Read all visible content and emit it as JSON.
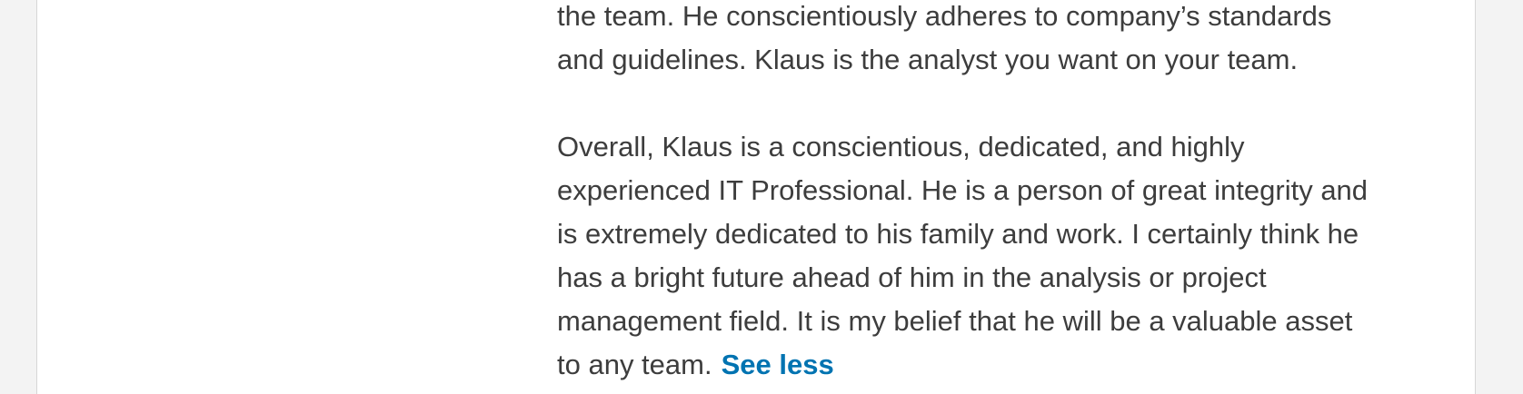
{
  "recommendation": {
    "paragraph_1": "the team. He conscientiously adheres to company’s standards\nand guidelines. Klaus is the analyst you want on your team.",
    "paragraph_2": "Overall, Klaus is a conscientious, dedicated, and highly\nexperienced IT Professional. He is a person of great integrity and\nis extremely dedicated to his family and work. I certainly think he\nhas a bright future ahead of him in the analysis or project\nmanagement field. It is my belief that he will be a valuable asset\nto any team.",
    "see_less_label": "See less"
  },
  "colors": {
    "page_background": "#f3f3f3",
    "card_background": "#ffffff",
    "text": "#3d3d3d",
    "link": "#0073b1"
  }
}
